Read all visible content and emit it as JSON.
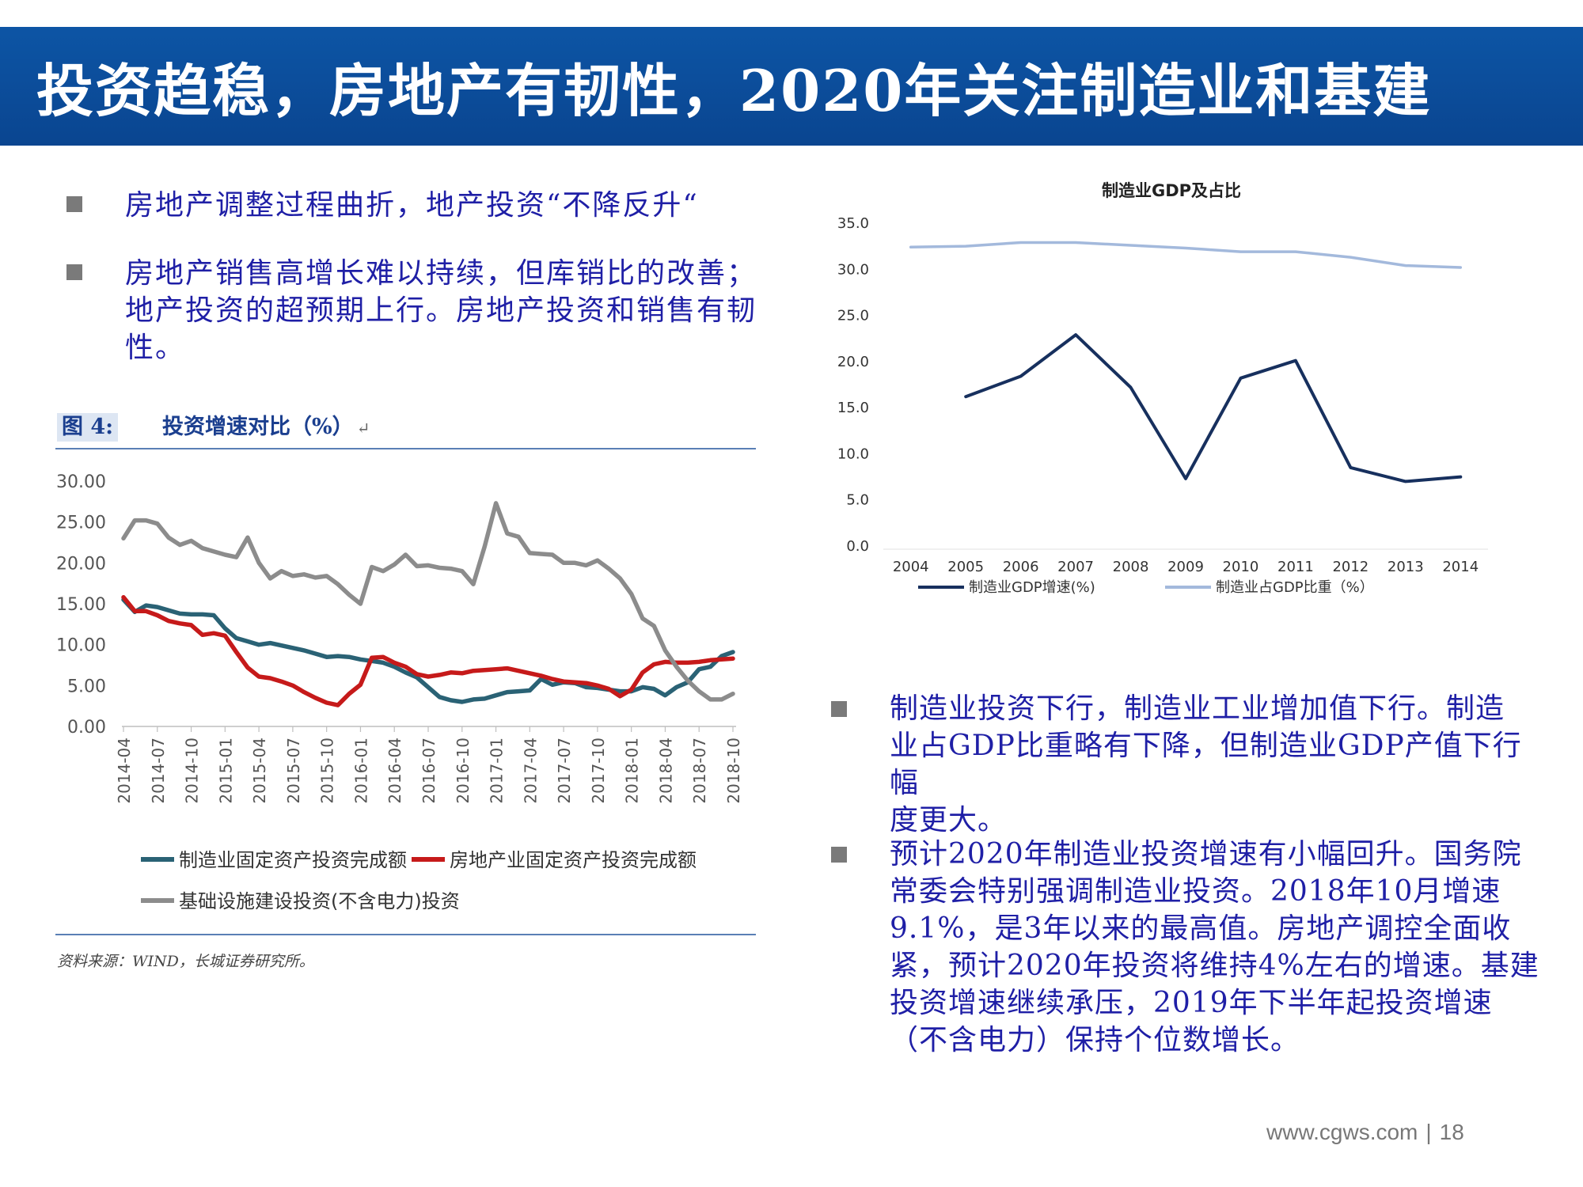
{
  "title": "投资趋稳，房地产有韧性，2020年关注制造业和基建",
  "left_bullets": [
    {
      "lines": [
        "房地产调整过程曲折，地产投资“不降反升“"
      ]
    },
    {
      "lines": [
        "房地产销售高增长难以持续，但库销比的改善；",
        "地产投资的超预期上行。房地产投资和销售有韧",
        "性。"
      ]
    }
  ],
  "right_bullets": [
    {
      "lines": [
        "制造业投资下行，制造业工业增加值下行。制造",
        "业占GDP比重略有下降，但制造业GDP产值下行幅",
        "度更大。"
      ]
    },
    {
      "lines": [
        "预计2020年制造业投资增速有小幅回升。国务院",
        "常委会特别强调制造业投资。2018年10月增速",
        "9.1%，是3年以来的最高值。房地产调控全面收",
        "紧，预计2020年投资将维持4%左右的增速。基建",
        "投资增速继续承压，2019年下半年起投资增速",
        "（不含电力）保持个位数增长。"
      ]
    }
  ],
  "figure_caption": {
    "label": "图 4:",
    "title": "投资增速对比（%）",
    "mark": "↵"
  },
  "figure_source": "资料来源：WIND，长城证券研究所。",
  "footer": {
    "url": "www.cgws.com",
    "separator": "|",
    "page": "18"
  },
  "colors": {
    "manufacturing": "#2a6275",
    "real_estate": "#c61a1a",
    "infrastructure": "#8c8c8c",
    "gdp_growth": "#17305e",
    "gdp_share": "#a3b9dc"
  },
  "chart_data": [
    {
      "type": "line",
      "title": "投资增速对比（%）",
      "xlabel": "",
      "ylabel": "",
      "ylim": [
        0,
        30
      ],
      "yticks": [
        "0.00",
        "5.00",
        "10.00",
        "15.00",
        "20.00",
        "25.00",
        "30.00"
      ],
      "tick_labels": [
        "2014-04",
        "2014-07",
        "2014-10",
        "2015-01",
        "2015-04",
        "2015-07",
        "2015-10",
        "2016-01",
        "2016-04",
        "2016-07",
        "2016-10",
        "2017-01",
        "2017-04",
        "2017-07",
        "2017-10",
        "2018-01",
        "2018-04",
        "2018-07",
        "2018-10"
      ],
      "n_points": 55,
      "legend": "bottom",
      "series": [
        {
          "name": "制造业固定资产投资完成额",
          "color_key": "manufacturing",
          "values": [
            15.5,
            14.0,
            14.8,
            14.6,
            14.2,
            13.8,
            13.7,
            13.7,
            13.6,
            12.0,
            10.8,
            10.4,
            10.0,
            10.2,
            9.9,
            9.6,
            9.3,
            8.9,
            8.5,
            8.6,
            8.5,
            8.2,
            8.0,
            7.8,
            7.3,
            6.6,
            6.0,
            4.8,
            3.6,
            3.2,
            3.0,
            3.3,
            3.4,
            3.8,
            4.2,
            4.3,
            4.4,
            5.8,
            5.1,
            5.4,
            5.3,
            4.8,
            4.7,
            4.5,
            4.3,
            4.3,
            4.8,
            4.6,
            3.8,
            4.8,
            5.4,
            7.0,
            7.3,
            8.6,
            9.1
          ]
        },
        {
          "name": "房地产业固定资产投资完成额",
          "color_key": "real_estate",
          "values": [
            15.8,
            14.1,
            14.1,
            13.6,
            12.9,
            12.6,
            12.4,
            11.2,
            11.4,
            11.1,
            9.1,
            7.2,
            6.1,
            5.9,
            5.5,
            5.0,
            4.2,
            3.5,
            2.9,
            2.6,
            4.0,
            5.1,
            8.4,
            8.5,
            7.8,
            7.3,
            6.4,
            6.1,
            6.3,
            6.6,
            6.5,
            6.8,
            6.9,
            7.0,
            7.1,
            6.8,
            6.5,
            6.2,
            5.8,
            5.5,
            5.4,
            5.3,
            5.0,
            4.6,
            3.7,
            4.5,
            6.6,
            7.6,
            7.9,
            7.8,
            7.8,
            7.9,
            8.1,
            8.2,
            8.3
          ]
        },
        {
          "name": "基础设施建设投资(不含电力)投资",
          "color_key": "infrastructure",
          "values": [
            23.0,
            25.2,
            25.2,
            24.8,
            23.1,
            22.2,
            22.7,
            21.8,
            21.4,
            21.0,
            20.7,
            23.1,
            20.0,
            18.1,
            19.0,
            18.4,
            18.6,
            18.2,
            18.4,
            17.4,
            16.1,
            15.0,
            19.5,
            19.0,
            19.8,
            21.0,
            19.6,
            19.7,
            19.4,
            19.3,
            19.0,
            17.4,
            22.0,
            27.3,
            23.6,
            23.2,
            21.2,
            21.1,
            21.0,
            20.0,
            20.0,
            19.7,
            20.3,
            19.3,
            18.1,
            16.2,
            13.2,
            12.3,
            9.3,
            7.3,
            5.6,
            4.3,
            3.3,
            3.3,
            4.0
          ]
        }
      ]
    },
    {
      "type": "line",
      "title": "制造业GDP及占比",
      "xlabel": "",
      "ylabel": "",
      "ylim": [
        0,
        35
      ],
      "yticks": [
        "0.0",
        "5.0",
        "10.0",
        "15.0",
        "20.0",
        "25.0",
        "30.0",
        "35.0"
      ],
      "categories": [
        "2004",
        "2005",
        "2006",
        "2007",
        "2008",
        "2009",
        "2010",
        "2011",
        "2012",
        "2013",
        "2014"
      ],
      "legend": "bottom",
      "series": [
        {
          "name": "制造业GDP增速(%)",
          "color_key": "gdp_growth",
          "values": [
            null,
            16.2,
            18.4,
            22.9,
            17.2,
            7.3,
            18.2,
            20.1,
            8.5,
            7.0,
            7.5
          ]
        },
        {
          "name": "制造业占GDP比重（%）",
          "color_key": "gdp_share",
          "values": [
            32.4,
            32.5,
            32.9,
            32.9,
            32.6,
            32.3,
            31.9,
            31.9,
            31.3,
            30.4,
            30.2
          ]
        }
      ]
    }
  ]
}
